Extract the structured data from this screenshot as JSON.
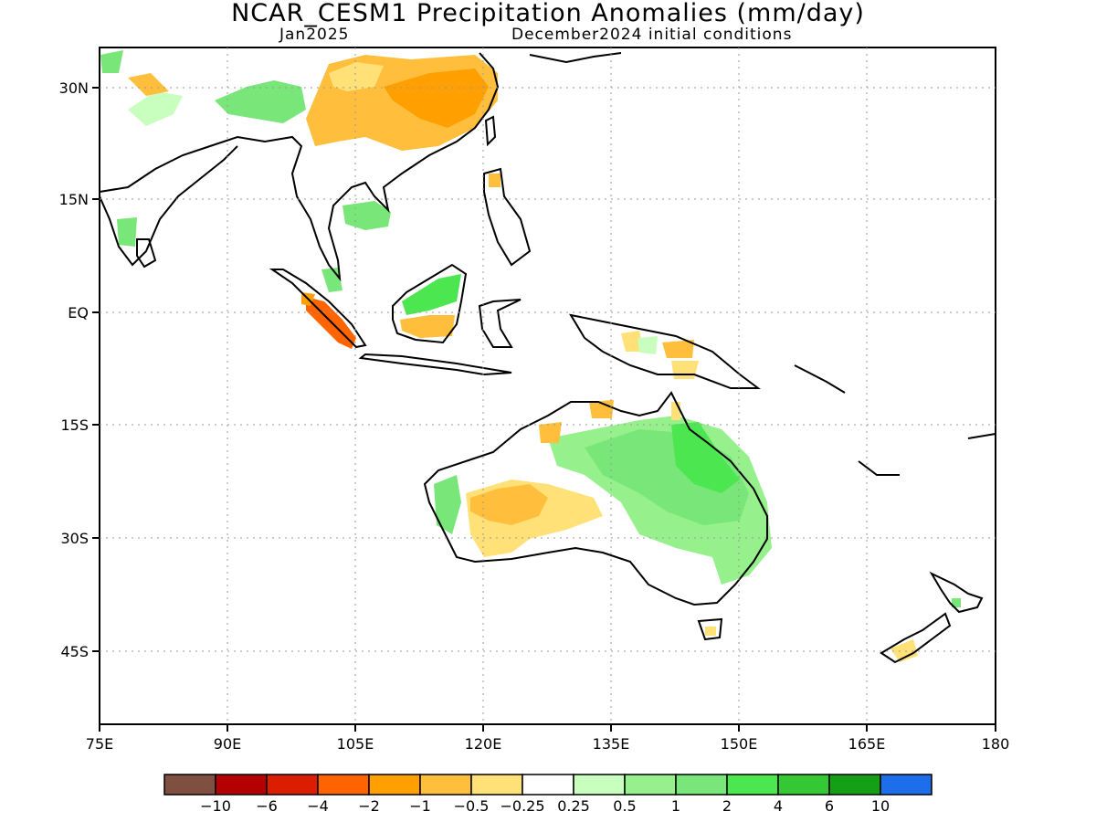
{
  "header": {
    "title": "NCAR_CESM1 Precipitation Anomalies (mm/day)",
    "valid_month": "Jan2025",
    "init_label": "December2024 initial conditions"
  },
  "map": {
    "lat_ticks": [
      "30N",
      "15N",
      "EQ",
      "15S",
      "30S",
      "45S"
    ],
    "lon_ticks": [
      "75E",
      "90E",
      "105E",
      "120E",
      "135E",
      "150E",
      "165E",
      "180"
    ],
    "grid": "dotted",
    "land_outline_color": "#000000",
    "anomaly_regions": [
      {
        "name": "Southern China",
        "category": "-1",
        "color": "#ffbf3c"
      },
      {
        "name": "Southwestern China / Himalaya",
        "category": "1",
        "color": "#78e678"
      },
      {
        "name": "Sumatra",
        "category": "-4",
        "color": "#ff6400"
      },
      {
        "name": "Southern Borneo",
        "category": "-1",
        "color": "#ffbf3c"
      },
      {
        "name": "Northern Borneo",
        "category": "2",
        "color": "#4ce650"
      },
      {
        "name": "Central / Western Australia",
        "category": "-0.5",
        "color": "#ffe178"
      },
      {
        "name": "Eastern Australia",
        "category": "1",
        "color": "#78e678"
      },
      {
        "name": "Northeastern Queensland",
        "category": "2",
        "color": "#4ce650"
      },
      {
        "name": "New Zealand South Island",
        "category": "-0.5",
        "color": "#ffe178"
      }
    ]
  },
  "colorbar": {
    "colors": [
      "#7f4f41",
      "#b40000",
      "#dc1e00",
      "#ff6400",
      "#ffa000",
      "#ffbf3c",
      "#ffe178",
      "#ffffff",
      "#c8ffbe",
      "#96f08c",
      "#78e678",
      "#4ce650",
      "#34c834",
      "#14a014",
      "#1e6eeb"
    ],
    "labels": [
      "−10",
      "−6",
      "−4",
      "−2",
      "−1",
      "−0.5",
      "−0.25",
      "0.25",
      "0.5",
      "1",
      "2",
      "4",
      "6",
      "10"
    ]
  }
}
